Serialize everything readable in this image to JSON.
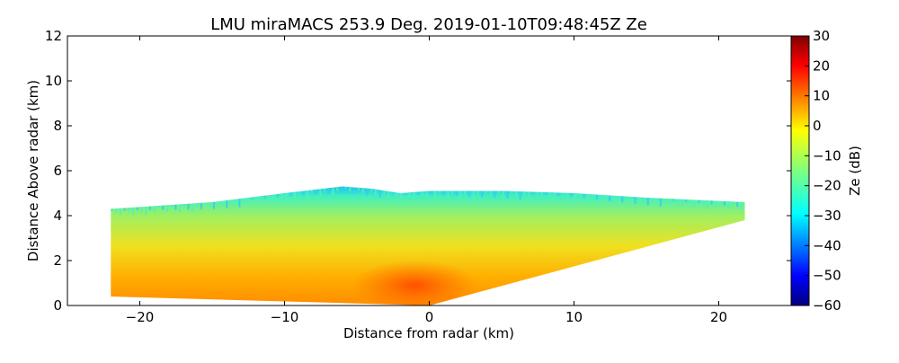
{
  "chart_data": {
    "type": "heatmap",
    "title": "LMU miraMACS 253.9 Deg. 2019-01-10T09:48:45Z  Ze",
    "xlabel": "Distance from radar (km)",
    "ylabel": "Distance Above radar  (km)",
    "xlim": [
      -25,
      25
    ],
    "ylim": [
      0,
      12
    ],
    "xticks": [
      -20,
      -10,
      0,
      10,
      20
    ],
    "yticks": [
      0,
      2,
      4,
      6,
      8,
      10,
      12
    ],
    "xtick_labels": [
      "−20",
      "−10",
      "0",
      "10",
      "20"
    ],
    "ytick_labels": [
      "0",
      "2",
      "4",
      "6",
      "8",
      "10",
      "12"
    ],
    "colorbar": {
      "label": "Ze (dB)",
      "range": [
        -60,
        30
      ],
      "ticks": [
        -60,
        -50,
        -40,
        -30,
        -20,
        -10,
        0,
        10,
        20,
        30
      ],
      "tick_labels": [
        "−60",
        "−50",
        "−40",
        "−30",
        "−20",
        "−10",
        "0",
        "10",
        "20",
        "30"
      ],
      "colormap": "jet"
    },
    "field": {
      "left_edge": {
        "x": -22,
        "y_min": 0.4,
        "y_max": 4.3
      },
      "right_edge": {
        "x": 21.8,
        "y_min": 3.8,
        "y_max": 4.6
      },
      "origin": {
        "x": 0,
        "y": 0
      },
      "cloud_top": [
        {
          "x": -22,
          "y": 4.3
        },
        {
          "x": -15,
          "y": 4.6
        },
        {
          "x": -10,
          "y": 5.0
        },
        {
          "x": -6,
          "y": 5.3
        },
        {
          "x": -4,
          "y": 5.2
        },
        {
          "x": -2,
          "y": 5.0
        },
        {
          "x": 0,
          "y": 5.1
        },
        {
          "x": 5,
          "y": 5.1
        },
        {
          "x": 10,
          "y": 5.0
        },
        {
          "x": 15,
          "y": 4.8
        },
        {
          "x": 21.8,
          "y": 4.6
        }
      ],
      "value_low": 15,
      "value_high": -25
    }
  }
}
